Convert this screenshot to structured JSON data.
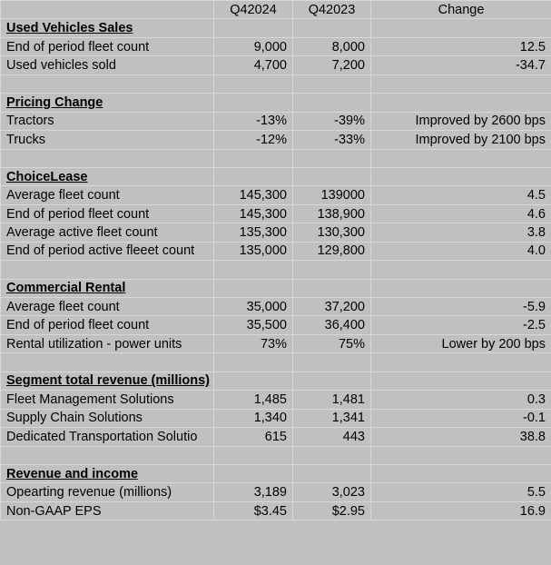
{
  "header": [
    "Q42024",
    "Q42023",
    "Change"
  ],
  "sections": [
    {
      "title": "Used Vehicles Sales",
      "rows": [
        [
          "End of period fleet count",
          "9,000",
          "8,000",
          "12.5"
        ],
        [
          "Used vehicles sold",
          "4,700",
          "7,200",
          "-34.7"
        ]
      ]
    },
    {
      "title": "Pricing Change",
      "rows": [
        [
          "Tractors",
          "-13%",
          "-39%",
          "Improved by 2600 bps"
        ],
        [
          "Trucks",
          "-12%",
          "-33%",
          "Improved by 2100 bps"
        ]
      ]
    },
    {
      "title": "ChoiceLease",
      "rows": [
        [
          "Average fleet count",
          "145,300",
          "139000",
          "4.5"
        ],
        [
          "End of period fleet count",
          "145,300",
          "138,900",
          "4.6"
        ],
        [
          "Average active fleet count",
          "135,300",
          "130,300",
          "3.8"
        ],
        [
          "End of period active fleeet count",
          "135,000",
          "129,800",
          "4.0"
        ]
      ]
    },
    {
      "title": "Commercial Rental",
      "rows": [
        [
          "Average fleet count",
          "35,000",
          "37,200",
          "-5.9"
        ],
        [
          "End of period fleet count",
          "35,500",
          "36,400",
          "-2.5"
        ],
        [
          "Rental utilization - power units",
          "73%",
          "75%",
          "Lower by 200 bps"
        ]
      ]
    },
    {
      "title": "Segment total revenue (millions)",
      "rows": [
        [
          "Fleet Management Solutions",
          "1,485",
          "1,481",
          "0.3"
        ],
        [
          "Supply Chain Solutions",
          "1,340",
          "1,341",
          "-0.1"
        ],
        [
          "Dedicated Transportation Solutio",
          "615",
          "443",
          "38.8"
        ]
      ]
    },
    {
      "title": "Revenue and income",
      "rows": [
        [
          "Opearting revenue (millions)",
          "3,189",
          "3,023",
          "5.5"
        ],
        [
          "Non-GAAP EPS",
          "$3.45",
          "$2.95",
          "16.9"
        ]
      ]
    }
  ]
}
